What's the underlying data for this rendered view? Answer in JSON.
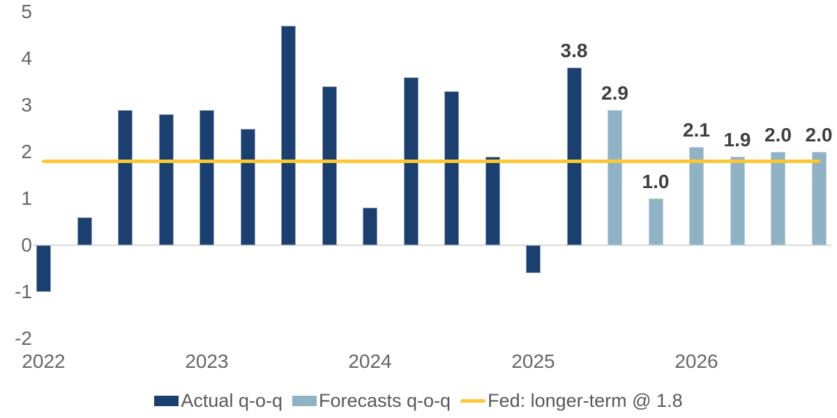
{
  "chart_data": {
    "type": "bar",
    "title": "",
    "xlabel": "",
    "ylabel": "",
    "ylim": [
      -2,
      5
    ],
    "yticks": [
      5,
      4,
      3,
      2,
      1,
      0,
      -1,
      -2
    ],
    "grid": "zero-baseline-only",
    "legend_position": "bottom",
    "categories": [
      "2022 Q1",
      "2022 Q2",
      "2022 Q3",
      "2022 Q4",
      "2023 Q1",
      "2023 Q2",
      "2023 Q3",
      "2023 Q4",
      "2024 Q1",
      "2024 Q2",
      "2024 Q3",
      "2024 Q4",
      "2025 Q1",
      "2025 Q2",
      "2025 Q3",
      "2025 Q4",
      "2026 Q1",
      "2026 Q2",
      "2026 Q3",
      "2026 Q4"
    ],
    "series": [
      {
        "name": "Actual q-o-q",
        "color": "#1b3f6e",
        "values": [
          -1.0,
          0.6,
          2.9,
          2.8,
          2.9,
          2.5,
          4.7,
          3.4,
          0.8,
          3.6,
          3.3,
          1.9,
          -0.6,
          3.8,
          null,
          null,
          null,
          null,
          null,
          null
        ]
      },
      {
        "name": "Forecasts q-o-q",
        "color": "#8fb3c5",
        "values": [
          null,
          null,
          null,
          null,
          null,
          null,
          null,
          null,
          null,
          null,
          null,
          null,
          null,
          null,
          2.9,
          1.0,
          2.1,
          1.9,
          2.0,
          2.0
        ]
      }
    ],
    "data_labels": [
      null,
      null,
      null,
      null,
      null,
      null,
      null,
      null,
      null,
      null,
      null,
      null,
      null,
      "3.8",
      "2.9",
      "1.0",
      "2.1",
      "1.9",
      "2.0",
      "2.0"
    ],
    "reference_line": {
      "name": "Fed: longer-term @ 1.8",
      "value": 1.8,
      "color": "#fdc72f"
    },
    "year_ticks": [
      {
        "label": "2022",
        "index": 0
      },
      {
        "label": "2023",
        "index": 4
      },
      {
        "label": "2024",
        "index": 8
      },
      {
        "label": "2025",
        "index": 12
      },
      {
        "label": "2026",
        "index": 16
      }
    ]
  },
  "legend": {
    "actual_label": "Actual q-o-q",
    "forecast_label": "Forecasts q-o-q",
    "fed_label": "Fed: longer-term @ 1.8"
  }
}
